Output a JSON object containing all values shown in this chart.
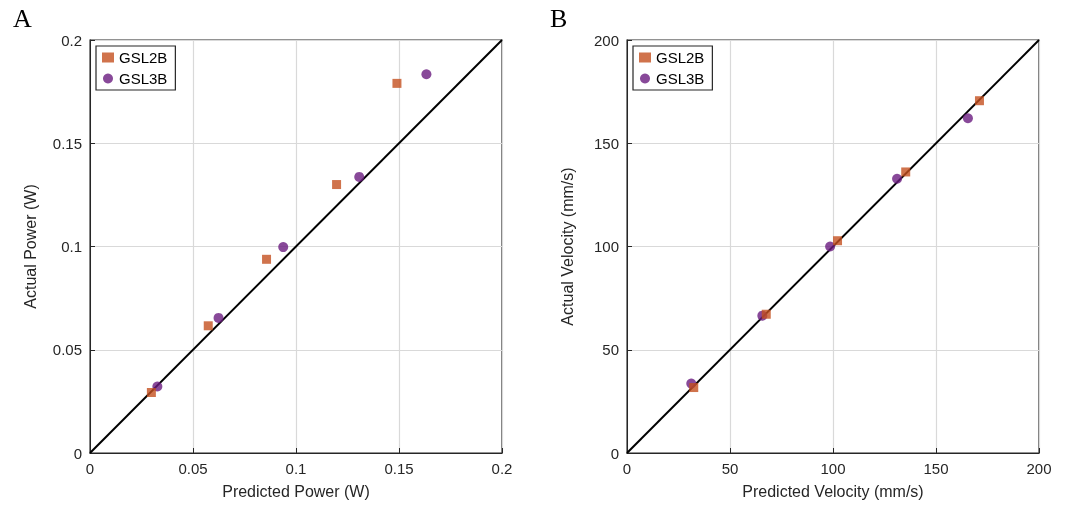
{
  "chart_data": [
    {
      "type": "scatter",
      "title": "A",
      "xlabel": "Predicted Power (W)",
      "ylabel": "Actual Power (W)",
      "xlim": [
        0,
        0.2
      ],
      "ylim": [
        0,
        0.2
      ],
      "xticks": [
        0,
        0.05,
        0.1,
        0.15,
        0.2
      ],
      "yticks": [
        0,
        0.05,
        0.1,
        0.15,
        0.2
      ],
      "grid": true,
      "legend": "top left",
      "series": [
        {
          "name": "GSL2B",
          "color": "#c4501f",
          "marker": "square",
          "x": [
            0.0298,
            0.0574,
            0.0857,
            0.1197,
            0.149
          ],
          "values": [
            0.0293,
            0.0616,
            0.0938,
            0.13,
            0.179
          ]
        },
        {
          "name": "GSL3B",
          "color": "#6a1b80",
          "marker": "circle",
          "x": [
            0.0327,
            0.0624,
            0.0938,
            0.1307,
            0.1633
          ],
          "values": [
            0.0322,
            0.0654,
            0.0997,
            0.1337,
            0.1834
          ]
        },
        {
          "type": "line",
          "color": "#000000",
          "marker": "none",
          "x": [
            0,
            0.2
          ],
          "values": [
            0,
            0.2
          ]
        }
      ]
    },
    {
      "type": "scatter",
      "title": "B",
      "xlabel": "Predicted Velocity (mm/s)",
      "ylabel": "Actual Velocity (mm/s)",
      "xlim": [
        0,
        200
      ],
      "ylim": [
        0,
        200
      ],
      "xticks": [
        0,
        50,
        100,
        150,
        200
      ],
      "yticks": [
        0,
        50,
        100,
        150,
        200
      ],
      "grid": true,
      "legend": "top left",
      "series": [
        {
          "name": "GSL2B",
          "color": "#c4501f",
          "marker": "square",
          "x": [
            32.4,
            67.6,
            102.2,
            135.3,
            171.1
          ],
          "values": [
            31.7,
            67.2,
            102.8,
            136.1,
            170.6
          ]
        },
        {
          "name": "GSL3B",
          "color": "#6a1b80",
          "marker": "circle",
          "x": [
            31.2,
            65.7,
            98.6,
            131.1,
            165.5
          ],
          "values": [
            33.6,
            66.5,
            100,
            132.8,
            162.1
          ]
        },
        {
          "type": "line",
          "color": "#000000",
          "marker": "none",
          "x": [
            0,
            200
          ],
          "values": [
            0,
            200
          ]
        }
      ]
    }
  ]
}
